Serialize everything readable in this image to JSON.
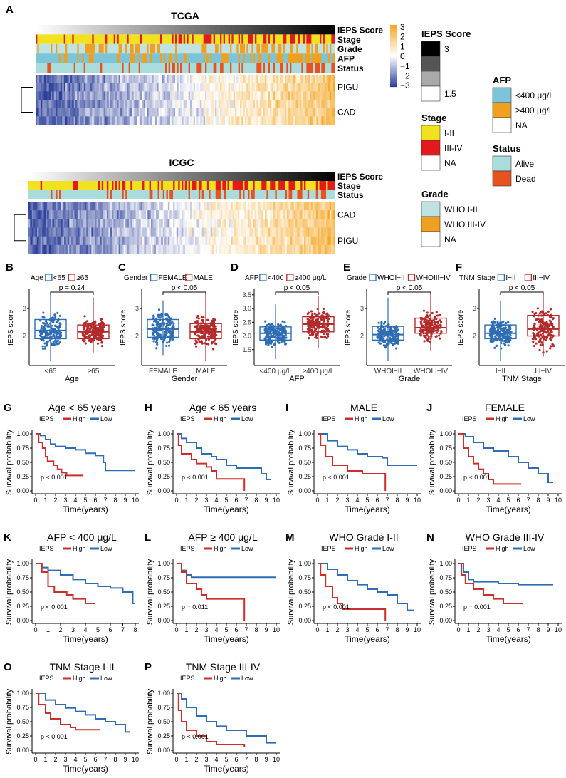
{
  "panel_A": {
    "letter": "A",
    "tcga": {
      "title": "TCGA",
      "rows": [
        "IEPS Score",
        "Stage",
        "Grade",
        "AFP",
        "Status"
      ],
      "genes": [
        "PIGU",
        "CAD"
      ]
    },
    "icgc": {
      "title": "ICGC",
      "rows": [
        "IEPS Score",
        "Stage",
        "Status"
      ],
      "genes": [
        "CAD",
        "PIGU"
      ]
    },
    "colorbar": {
      "ticks": [
        "3",
        "2",
        "1",
        "0",
        "−1",
        "−2",
        "−3"
      ],
      "low": "#2b3f99",
      "mid": "#ffffff",
      "high": "#f5a623"
    },
    "legends": {
      "ieps": {
        "title": "IEPS Score",
        "labels": [
          "3",
          "1.5"
        ]
      },
      "stage": {
        "title": "Stage",
        "items": [
          {
            "label": "I-II",
            "color": "#f2e21e"
          },
          {
            "label": "III-IV",
            "color": "#e31a1c"
          },
          {
            "label": "NA",
            "color": "#ffffff"
          }
        ]
      },
      "grade": {
        "title": "Grade",
        "items": [
          {
            "label": "WHO I-II",
            "color": "#bfe3e3"
          },
          {
            "label": "WHO III-IV",
            "color": "#f0a020"
          },
          {
            "label": "NA",
            "color": "#ffffff"
          }
        ]
      },
      "afp": {
        "title": "AFP",
        "items": [
          {
            "label": "<400 μg/L",
            "color": "#7cc4d8"
          },
          {
            "label": "≥400 μg/L",
            "color": "#f0a020"
          },
          {
            "label": "NA",
            "color": "#ffffff"
          }
        ]
      },
      "status": {
        "title": "Status",
        "items": [
          {
            "label": "Alive",
            "color": "#a9dcdc"
          },
          {
            "label": "Dead",
            "color": "#e8521f"
          }
        ]
      }
    }
  },
  "chart_data": [
    {
      "type": "box",
      "letter": "B",
      "legend_title": "Age",
      "groups": [
        "<65",
        "≥65"
      ],
      "xlabel": "Age",
      "ylabel": "IEPS score",
      "p": "p = 0.24",
      "yticks": [
        "2",
        "3"
      ],
      "ylim": [
        1,
        3.6
      ],
      "stats": [
        {
          "median": 2.2,
          "q1": 1.9,
          "q3": 2.6,
          "min": 1.1,
          "max": 3.5
        },
        {
          "median": 2.15,
          "q1": 1.9,
          "q3": 2.4,
          "min": 1.4,
          "max": 3.4
        }
      ]
    },
    {
      "type": "box",
      "letter": "C",
      "legend_title": "Gender",
      "groups": [
        "FEMALE",
        "MALE"
      ],
      "xlabel": "Gender",
      "ylabel": "IEPS score",
      "p": "p < 0.05",
      "yticks": [
        "2",
        "3"
      ],
      "ylim": [
        1,
        3.6
      ],
      "stats": [
        {
          "median": 2.25,
          "q1": 1.95,
          "q3": 2.6,
          "min": 1.3,
          "max": 3.3
        },
        {
          "median": 2.15,
          "q1": 1.9,
          "q3": 2.45,
          "min": 1.1,
          "max": 3.5
        }
      ]
    },
    {
      "type": "box",
      "letter": "D",
      "legend_title": "AFP",
      "groups": [
        "<400 μg/L",
        "≥400 μg/L"
      ],
      "legend_labels": [
        "<400",
        "≥400 μg/L"
      ],
      "xlabel": "AFP",
      "ylabel": "IEPS score",
      "p": "p < 0.05",
      "yticks": [
        "1.5",
        "2.0",
        "2.5",
        "3.0",
        "3.5"
      ],
      "ylim": [
        1,
        3.6
      ],
      "stats": [
        {
          "median": 2.1,
          "q1": 1.85,
          "q3": 2.33,
          "min": 1.15,
          "max": 3.15
        },
        {
          "median": 2.43,
          "q1": 2.15,
          "q3": 2.7,
          "min": 1.55,
          "max": 3.45
        }
      ]
    },
    {
      "type": "box",
      "letter": "E",
      "legend_title": "Grade",
      "groups": [
        "WHOI−II",
        "WHOIII−IV"
      ],
      "xlabel": "Grade",
      "ylabel": "IEPS score",
      "p": "p < 0.05",
      "yticks": [
        "2",
        "3"
      ],
      "ylim": [
        1,
        3.6
      ],
      "stats": [
        {
          "median": 2.05,
          "q1": 1.85,
          "q3": 2.35,
          "min": 1.1,
          "max": 3.4
        },
        {
          "median": 2.3,
          "q1": 2.1,
          "q3": 2.65,
          "min": 1.45,
          "max": 3.5
        }
      ]
    },
    {
      "type": "box",
      "letter": "F",
      "legend_title": "TNM Stage",
      "groups": [
        "I−II",
        "III−IV"
      ],
      "xlabel": "TNM Stage",
      "ylabel": "IEPS score",
      "p": "p < 0.05",
      "yticks": [
        "2",
        "3"
      ],
      "ylim": [
        1,
        3.6
      ],
      "stats": [
        {
          "median": 2.1,
          "q1": 1.9,
          "q3": 2.4,
          "min": 1.1,
          "max": 3.3
        },
        {
          "median": 2.25,
          "q1": 2.0,
          "q3": 2.75,
          "min": 1.25,
          "max": 3.5
        }
      ]
    },
    {
      "type": "line",
      "letter": "G",
      "title": "Age < 65 years",
      "p": "p < 0.001",
      "xmax": 10,
      "high": [
        [
          0,
          1
        ],
        [
          0.3,
          0.85
        ],
        [
          0.7,
          0.75
        ],
        [
          1,
          0.6
        ],
        [
          1.2,
          0.52
        ],
        [
          1.8,
          0.45
        ],
        [
          2.2,
          0.38
        ],
        [
          2.6,
          0.32
        ],
        [
          3.1,
          0.27
        ],
        [
          4.8,
          0.27
        ]
      ],
      "low": [
        [
          0,
          1
        ],
        [
          0.5,
          0.97
        ],
        [
          1,
          0.9
        ],
        [
          1.5,
          0.82
        ],
        [
          2,
          0.78
        ],
        [
          3,
          0.75
        ],
        [
          4,
          0.72
        ],
        [
          5,
          0.66
        ],
        [
          6,
          0.62
        ],
        [
          6.8,
          0.5
        ],
        [
          7,
          0.36
        ],
        [
          10,
          0.36
        ]
      ]
    },
    {
      "type": "line",
      "letter": "H",
      "title": "Age < 65 years",
      "p": "p < 0.001",
      "xmax": 10,
      "high": [
        [
          0,
          1
        ],
        [
          0.2,
          0.8
        ],
        [
          0.5,
          0.65
        ],
        [
          1.5,
          0.55
        ],
        [
          2,
          0.48
        ],
        [
          3,
          0.42
        ],
        [
          3.5,
          0.35
        ],
        [
          4,
          0.21
        ],
        [
          6.8,
          0.21
        ],
        [
          6.8,
          0
        ]
      ],
      "low": [
        [
          0,
          1
        ],
        [
          0.5,
          0.92
        ],
        [
          1,
          0.85
        ],
        [
          2,
          0.75
        ],
        [
          2.5,
          0.65
        ],
        [
          3.5,
          0.6
        ],
        [
          4,
          0.55
        ],
        [
          5,
          0.45
        ],
        [
          6,
          0.4
        ],
        [
          8.5,
          0.3
        ],
        [
          9,
          0.2
        ],
        [
          9.5,
          0.2
        ]
      ]
    },
    {
      "type": "line",
      "letter": "I",
      "title": "MALE",
      "p": "p < 0.001",
      "xmax": 10,
      "high": [
        [
          0,
          1
        ],
        [
          0.3,
          0.8
        ],
        [
          0.8,
          0.6
        ],
        [
          1.5,
          0.45
        ],
        [
          3,
          0.35
        ],
        [
          4.5,
          0.3
        ],
        [
          6.8,
          0.3
        ],
        [
          6.8,
          0
        ]
      ],
      "low": [
        [
          0,
          1
        ],
        [
          1,
          0.88
        ],
        [
          2,
          0.78
        ],
        [
          3,
          0.72
        ],
        [
          4,
          0.65
        ],
        [
          5,
          0.6
        ],
        [
          6.5,
          0.58
        ],
        [
          7,
          0.45
        ],
        [
          10,
          0.45
        ]
      ]
    },
    {
      "type": "line",
      "letter": "J",
      "title": "FEMALE",
      "p": "p < 0.001",
      "xmax": 10,
      "high": [
        [
          0,
          1
        ],
        [
          0.5,
          0.75
        ],
        [
          1,
          0.6
        ],
        [
          1.5,
          0.48
        ],
        [
          2,
          0.38
        ],
        [
          2.5,
          0.3
        ],
        [
          3,
          0.2
        ],
        [
          3.5,
          0.12
        ],
        [
          6.3,
          0.12
        ]
      ],
      "low": [
        [
          0,
          1
        ],
        [
          0.7,
          0.95
        ],
        [
          1.5,
          0.85
        ],
        [
          2.5,
          0.75
        ],
        [
          3.5,
          0.7
        ],
        [
          5,
          0.6
        ],
        [
          6,
          0.5
        ],
        [
          7,
          0.4
        ],
        [
          8,
          0.3
        ],
        [
          9,
          0.15
        ],
        [
          9.5,
          0.15
        ]
      ]
    },
    {
      "type": "line",
      "letter": "K",
      "title": "AFP < 400 μg/L",
      "p": "p < 0.001",
      "xmax": 8,
      "high": [
        [
          0,
          1
        ],
        [
          0.5,
          0.85
        ],
        [
          1,
          0.6
        ],
        [
          1.5,
          0.5
        ],
        [
          2.5,
          0.45
        ],
        [
          3,
          0.38
        ],
        [
          4,
          0.3
        ],
        [
          4.8,
          0.3
        ]
      ],
      "low": [
        [
          0,
          1
        ],
        [
          0.5,
          0.93
        ],
        [
          1,
          0.88
        ],
        [
          2,
          0.8
        ],
        [
          3,
          0.72
        ],
        [
          4,
          0.65
        ],
        [
          5,
          0.6
        ],
        [
          6,
          0.57
        ],
        [
          7,
          0.5
        ],
        [
          7.8,
          0.3
        ],
        [
          8,
          0.3
        ]
      ]
    },
    {
      "type": "line",
      "letter": "L",
      "title": "AFP ≥ 400 μg/L",
      "p": "p = 0.011",
      "xmax": 10,
      "high": [
        [
          0,
          1
        ],
        [
          0.5,
          0.85
        ],
        [
          1,
          0.65
        ],
        [
          2,
          0.55
        ],
        [
          2.5,
          0.45
        ],
        [
          3,
          0.38
        ],
        [
          6.8,
          0.38
        ],
        [
          6.8,
          0
        ]
      ],
      "low": [
        [
          0,
          1
        ],
        [
          0.5,
          0.88
        ],
        [
          1,
          0.8
        ],
        [
          1.5,
          0.76
        ],
        [
          10,
          0.76
        ]
      ]
    },
    {
      "type": "line",
      "letter": "M",
      "title": "WHO Grade I-II",
      "p": "p < 0.001",
      "xmax": 10,
      "high": [
        [
          0,
          1
        ],
        [
          0.3,
          0.8
        ],
        [
          0.8,
          0.6
        ],
        [
          1.5,
          0.4
        ],
        [
          2,
          0.3
        ],
        [
          2.5,
          0.2
        ],
        [
          6.8,
          0.2
        ],
        [
          6.8,
          0
        ]
      ],
      "low": [
        [
          0,
          1
        ],
        [
          1,
          0.9
        ],
        [
          2,
          0.8
        ],
        [
          3,
          0.7
        ],
        [
          4,
          0.63
        ],
        [
          5,
          0.55
        ],
        [
          6,
          0.5
        ],
        [
          7,
          0.45
        ],
        [
          8,
          0.3
        ],
        [
          9,
          0.18
        ],
        [
          9.7,
          0.18
        ]
      ]
    },
    {
      "type": "line",
      "letter": "N",
      "title": "WHO Grade III-IV",
      "p": "p = 0.001",
      "xmax": 10,
      "high": [
        [
          0,
          1
        ],
        [
          0.3,
          0.8
        ],
        [
          0.7,
          0.65
        ],
        [
          1.5,
          0.55
        ],
        [
          2.5,
          0.45
        ],
        [
          3.5,
          0.38
        ],
        [
          4.5,
          0.3
        ],
        [
          6.5,
          0.3
        ]
      ],
      "low": [
        [
          0,
          1
        ],
        [
          0.5,
          0.85
        ],
        [
          1,
          0.72
        ],
        [
          1.5,
          0.68
        ],
        [
          4,
          0.65
        ],
        [
          6,
          0.63
        ],
        [
          9.5,
          0.63
        ]
      ]
    },
    {
      "type": "line",
      "letter": "O",
      "title": "TNM Stage I-II",
      "p": "p < 0.001",
      "xmax": 10,
      "high": [
        [
          0,
          1
        ],
        [
          0.3,
          0.8
        ],
        [
          1,
          0.65
        ],
        [
          1.5,
          0.55
        ],
        [
          2.5,
          0.45
        ],
        [
          3.5,
          0.4
        ],
        [
          4,
          0.36
        ],
        [
          6.5,
          0.36
        ]
      ],
      "low": [
        [
          0,
          1
        ],
        [
          1,
          0.88
        ],
        [
          2,
          0.8
        ],
        [
          3,
          0.74
        ],
        [
          4,
          0.68
        ],
        [
          5,
          0.62
        ],
        [
          6,
          0.55
        ],
        [
          7,
          0.5
        ],
        [
          8,
          0.45
        ],
        [
          9,
          0.32
        ],
        [
          9.5,
          0.32
        ]
      ]
    },
    {
      "type": "line",
      "letter": "P",
      "title": "TNM Stage III-IV",
      "p": "p < 0.001",
      "xmax": 10,
      "high": [
        [
          0,
          1
        ],
        [
          0.2,
          0.7
        ],
        [
          0.5,
          0.5
        ],
        [
          1,
          0.35
        ],
        [
          2,
          0.25
        ],
        [
          3,
          0.15
        ],
        [
          4,
          0.1
        ],
        [
          6.8,
          0.1
        ],
        [
          6.8,
          0.05
        ]
      ],
      "low": [
        [
          0,
          1
        ],
        [
          0.5,
          0.9
        ],
        [
          1,
          0.75
        ],
        [
          2,
          0.6
        ],
        [
          3,
          0.5
        ],
        [
          4,
          0.42
        ],
        [
          5,
          0.35
        ],
        [
          7,
          0.25
        ],
        [
          9,
          0.13
        ],
        [
          10,
          0.13
        ]
      ]
    }
  ],
  "km_common": {
    "legend_title": "IEPS",
    "high_label": "High",
    "low_label": "Low",
    "xlabel": "Time(years)",
    "ylabel": "Survival probability",
    "yticks": [
      "0.00",
      "0.25",
      "0.50",
      "0.75",
      "1.00"
    ],
    "high_color": "#c9302c",
    "low_color": "#2e6db4"
  },
  "box_colors": [
    "#2e6db4",
    "#b22a2a"
  ]
}
